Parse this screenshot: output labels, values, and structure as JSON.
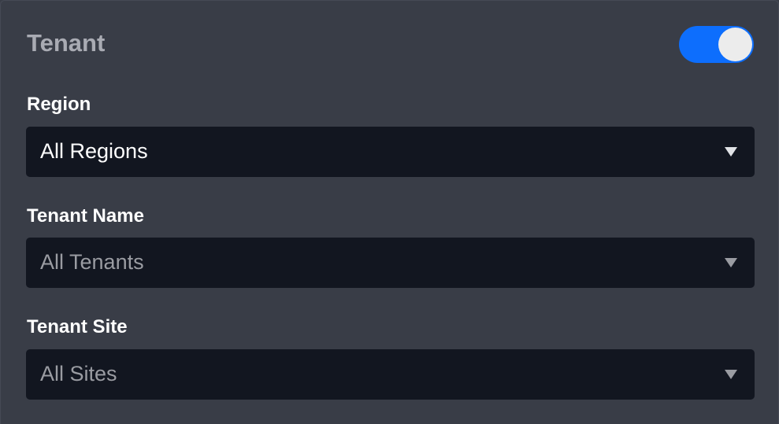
{
  "header": {
    "title": "Tenant",
    "toggle_on": true
  },
  "fields": [
    {
      "label": "Region",
      "value": "All Regions",
      "enabled": true
    },
    {
      "label": "Tenant Name",
      "value": "All Tenants",
      "enabled": false
    },
    {
      "label": "Tenant Site",
      "value": "All Sites",
      "enabled": false
    }
  ],
  "colors": {
    "accent": "#0d6efd",
    "panel": "#393d47",
    "select": "#121620"
  }
}
